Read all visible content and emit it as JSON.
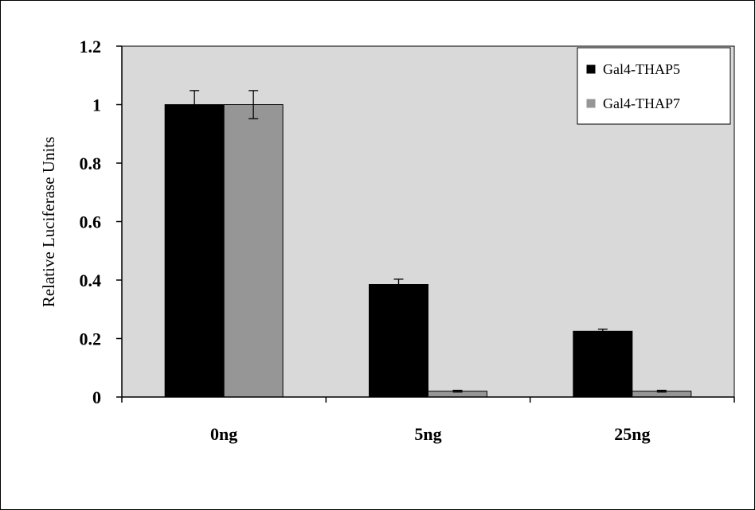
{
  "chart_data": {
    "type": "bar",
    "title": "",
    "xlabel": "",
    "ylabel": "Relative Luciferase Units",
    "ylim": [
      0,
      1.2
    ],
    "yticks": [
      0,
      0.2,
      0.4,
      0.6,
      0.8,
      1,
      1.2
    ],
    "ytick_labels": [
      "0",
      "0.2",
      "0.4",
      "0.6",
      "0.8",
      "1",
      "1.2"
    ],
    "categories": [
      "0ng",
      "5ng",
      "25ng"
    ],
    "series": [
      {
        "name": "Gal4-THAP5",
        "values": [
          1.0,
          0.385,
          0.225
        ],
        "errors": [
          0.048,
          0.018,
          0.007
        ]
      },
      {
        "name": "Gal4-THAP7",
        "values": [
          1.0,
          0.02,
          0.02
        ],
        "errors": [
          0.048,
          0.003,
          0.003
        ]
      }
    ],
    "grid": false,
    "legend_position": "top-right",
    "colors": {
      "plot_background": "#d9d9d9",
      "series": [
        "#000000",
        "#969696"
      ]
    }
  }
}
